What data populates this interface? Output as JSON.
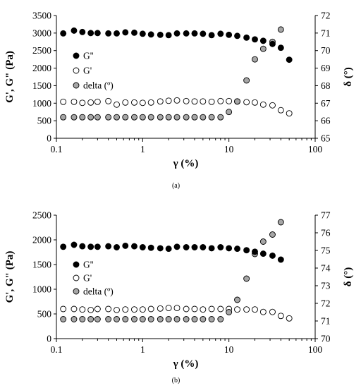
{
  "chart_data": [
    {
      "type": "scatter",
      "panel_label": "(a)",
      "xlabel": "γ (%)",
      "ylabel": "G', G\" (Pa)",
      "y2label": "δ (°)",
      "xscale": "log",
      "xlim": [
        0.1,
        100
      ],
      "ylim": [
        0,
        3500
      ],
      "y2lim": [
        65,
        72
      ],
      "x_ticks": [
        0.1,
        1,
        10,
        100
      ],
      "x_tick_labels": [
        "0.1",
        "1",
        "10",
        "100"
      ],
      "y_ticks": [
        0,
        500,
        1000,
        1500,
        2000,
        2500,
        3000,
        3500
      ],
      "y_tick_labels": [
        "0",
        "500",
        "1000",
        "1500",
        "2000",
        "2500",
        "3000",
        "3500"
      ],
      "y2_ticks": [
        65,
        66,
        67,
        68,
        69,
        70,
        71,
        72
      ],
      "y2_tick_labels": [
        "65",
        "66",
        "67",
        "68",
        "69",
        "70",
        "71",
        "72"
      ],
      "grid": false,
      "legend_position": "left-middle",
      "series": [
        {
          "name": "G''",
          "axis": "left",
          "marker": "filled",
          "color": "#000000",
          "x": [
            0.12,
            0.16,
            0.2,
            0.25,
            0.3,
            0.4,
            0.5,
            0.63,
            0.8,
            1.0,
            1.25,
            1.6,
            2.0,
            2.5,
            3.2,
            4.0,
            5.0,
            6.3,
            8.0,
            10.0,
            12.5,
            16.0,
            20.0,
            25.0,
            32.0,
            40.0,
            50.0
          ],
          "values": [
            2990,
            3070,
            3030,
            3000,
            3000,
            2990,
            2990,
            3020,
            3010,
            2980,
            2960,
            2950,
            2940,
            2990,
            2990,
            2990,
            2980,
            2940,
            2980,
            2950,
            2920,
            2870,
            2820,
            2780,
            2690,
            2580,
            2240
          ]
        },
        {
          "name": "G'",
          "axis": "left",
          "marker": "open",
          "color": "#000000",
          "x": [
            0.12,
            0.16,
            0.2,
            0.25,
            0.3,
            0.4,
            0.5,
            0.63,
            0.8,
            1.0,
            1.25,
            1.6,
            2.0,
            2.5,
            3.2,
            4.0,
            5.0,
            6.3,
            8.0,
            10.0,
            12.5,
            16.0,
            20.0,
            25.0,
            32.0,
            40.0,
            50.0
          ],
          "values": [
            1040,
            1040,
            1010,
            1020,
            1040,
            1060,
            960,
            1020,
            1020,
            1010,
            1020,
            1050,
            1070,
            1080,
            1060,
            1050,
            1050,
            1040,
            1060,
            1060,
            1050,
            1030,
            1020,
            960,
            940,
            800,
            710
          ]
        },
        {
          "name": "delta (º)",
          "axis": "right",
          "marker": "gray",
          "color": "#a6a6a6",
          "x": [
            0.12,
            0.16,
            0.2,
            0.25,
            0.3,
            0.4,
            0.5,
            0.63,
            0.8,
            1.0,
            1.25,
            1.6,
            2.0,
            2.5,
            3.2,
            4.0,
            5.0,
            6.3,
            8.0,
            10.0,
            12.5,
            16.0,
            20.0,
            25.0,
            32.0,
            40.0
          ],
          "values": [
            66.2,
            66.2,
            66.2,
            66.2,
            66.2,
            66.2,
            66.2,
            66.2,
            66.2,
            66.2,
            66.2,
            66.2,
            66.2,
            66.2,
            66.2,
            66.2,
            66.2,
            66.2,
            66.2,
            66.5,
            67.1,
            68.3,
            69.5,
            70.1,
            70.5,
            71.2
          ]
        }
      ]
    },
    {
      "type": "scatter",
      "panel_label": "(b)",
      "xlabel": "γ (%)",
      "ylabel": "G', G\" (Pa)",
      "y2label": "δ (°)",
      "xscale": "log",
      "xlim": [
        0.1,
        100
      ],
      "ylim": [
        0,
        2500
      ],
      "y2lim": [
        70,
        77
      ],
      "x_ticks": [
        0.1,
        1,
        10,
        100
      ],
      "x_tick_labels": [
        "0.1",
        "1",
        "10",
        "100"
      ],
      "y_ticks": [
        0,
        500,
        1000,
        1500,
        2000,
        2500
      ],
      "y_tick_labels": [
        "0",
        "500",
        "1000",
        "1500",
        "2000",
        "2500"
      ],
      "y2_ticks": [
        70,
        71,
        72,
        73,
        74,
        75,
        76,
        77
      ],
      "y2_tick_labels": [
        "70",
        "71",
        "72",
        "73",
        "74",
        "75",
        "76",
        "77"
      ],
      "grid": false,
      "legend_position": "left-middle",
      "series": [
        {
          "name": "G''",
          "axis": "left",
          "marker": "filled",
          "color": "#000000",
          "x": [
            0.12,
            0.16,
            0.2,
            0.25,
            0.3,
            0.4,
            0.5,
            0.63,
            0.8,
            1.0,
            1.25,
            1.6,
            2.0,
            2.5,
            3.2,
            4.0,
            5.0,
            6.3,
            8.0,
            10.0,
            12.5,
            16.0,
            20.0,
            25.0,
            32.0,
            40.0
          ],
          "values": [
            1860,
            1900,
            1870,
            1860,
            1860,
            1870,
            1850,
            1880,
            1870,
            1850,
            1840,
            1830,
            1820,
            1860,
            1850,
            1850,
            1850,
            1830,
            1850,
            1830,
            1820,
            1790,
            1760,
            1720,
            1680,
            1600
          ]
        },
        {
          "name": "G'",
          "axis": "left",
          "marker": "open",
          "color": "#000000",
          "x": [
            0.12,
            0.16,
            0.2,
            0.25,
            0.3,
            0.4,
            0.5,
            0.63,
            0.8,
            1.0,
            1.25,
            1.6,
            2.0,
            2.5,
            3.2,
            4.0,
            5.0,
            6.3,
            8.0,
            10.0,
            12.5,
            16.0,
            20.0,
            25.0,
            32.0,
            40.0,
            50.0
          ],
          "values": [
            600,
            600,
            590,
            580,
            600,
            600,
            580,
            590,
            590,
            590,
            600,
            610,
            620,
            620,
            600,
            600,
            590,
            600,
            600,
            600,
            590,
            590,
            590,
            540,
            540,
            460,
            410
          ]
        },
        {
          "name": "delta (º)",
          "axis": "right",
          "marker": "gray",
          "color": "#a6a6a6",
          "x": [
            0.12,
            0.16,
            0.2,
            0.25,
            0.3,
            0.4,
            0.5,
            0.63,
            0.8,
            1.0,
            1.25,
            1.6,
            2.0,
            2.5,
            3.2,
            4.0,
            5.0,
            6.3,
            8.0,
            10.0,
            12.5,
            16.0,
            20.0,
            25.0,
            32.0,
            40.0
          ],
          "values": [
            71.1,
            71.1,
            71.1,
            71.1,
            71.1,
            71.1,
            71.1,
            71.1,
            71.1,
            71.1,
            71.1,
            71.1,
            71.1,
            71.1,
            71.1,
            71.1,
            71.1,
            71.1,
            71.1,
            71.5,
            72.2,
            73.4,
            74.8,
            75.5,
            75.9,
            76.6
          ]
        }
      ]
    }
  ]
}
